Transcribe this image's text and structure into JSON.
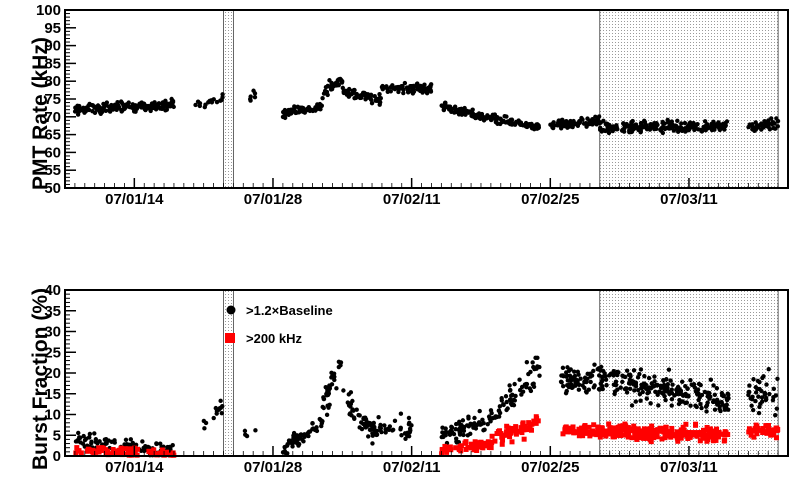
{
  "chart_data": [
    {
      "type": "scatter",
      "ylabel": "PMT Rate (kHz)",
      "xlabel": "",
      "ylim": [
        50,
        100
      ],
      "y_ticks": [
        "50",
        "55",
        "60",
        "65",
        "70",
        "75",
        "80",
        "85",
        "90",
        "95",
        "100"
      ],
      "x_ticks": [
        "07/01/14",
        "07/01/28",
        "07/02/11",
        "07/02/25",
        "07/03/11"
      ],
      "shaded_bands": [
        {
          "from": "07/01/23",
          "to": "07/01/24"
        },
        {
          "from": "07/03/02",
          "to": "07/03/20"
        }
      ],
      "series": [
        {
          "values_description_free": true,
          "segments": [
            {
              "x0": "07/01/08",
              "x1": "07/01/18",
              "y0": 72,
              "y1": 73.5,
              "noise": 1.6,
              "n": 180
            },
            {
              "x0": "07/01/20",
              "x1": "07/01/23",
              "y0": 73,
              "y1": 75,
              "noise": 1.6,
              "n": 18
            },
            {
              "x0": "07/01/25",
              "x1": "07/01/27",
              "y0": 73,
              "y1": 79,
              "noise": 2.5,
              "n": 6
            },
            {
              "x0": "07/01/29",
              "x1": "07/02/02",
              "y0": 71,
              "y1": 73,
              "noise": 1.5,
              "n": 70
            },
            {
              "x0": "07/02/02",
              "x1": "07/02/04",
              "y0": 77,
              "y1": 80,
              "noise": 2.0,
              "n": 30
            },
            {
              "x0": "07/02/04",
              "x1": "07/02/08",
              "y0": 77,
              "y1": 75,
              "noise": 1.6,
              "n": 60
            },
            {
              "x0": "07/02/08",
              "x1": "07/02/13",
              "y0": 78,
              "y1": 78,
              "noise": 1.6,
              "n": 80
            },
            {
              "x0": "07/02/14",
              "x1": "07/02/18",
              "y0": 73,
              "y1": 70,
              "noise": 1.4,
              "n": 70
            },
            {
              "x0": "07/02/18",
              "x1": "07/02/24",
              "y0": 70,
              "y1": 67,
              "noise": 1.3,
              "n": 90
            },
            {
              "x0": "07/02/25",
              "x1": "07/03/02",
              "y0": 67.5,
              "y1": 69,
              "noise": 1.4,
              "n": 90
            },
            {
              "x0": "07/03/02",
              "x1": "07/03/15",
              "y0": 67,
              "y1": 67.5,
              "noise": 1.8,
              "n": 200
            },
            {
              "x0": "07/03/17",
              "x1": "07/03/20",
              "y0": 67,
              "y1": 68,
              "noise": 2.5,
              "n": 40
            }
          ]
        }
      ]
    },
    {
      "type": "scatter",
      "ylabel": "Burst Fraction (%)",
      "xlabel": "",
      "ylim": [
        0,
        40
      ],
      "y_ticks": [
        "0",
        "5",
        "10",
        "15",
        "20",
        "25",
        "30",
        "35",
        "40"
      ],
      "x_ticks": [
        "07/01/14",
        "07/01/28",
        "07/02/11",
        "07/02/25",
        "07/03/11"
      ],
      "shaded_bands": [
        {
          "from": "07/01/23",
          "to": "07/01/24"
        },
        {
          "from": "07/03/02",
          "to": "07/03/20"
        }
      ],
      "series": [
        {
          "name": ">1.2×Baseline",
          "color": "#000000",
          "marker": "circle",
          "segments": [
            {
              "x0": "07/01/08",
              "x1": "07/01/18",
              "y0": 4,
              "y1": 1,
              "noise": 2.5,
              "n": 110
            },
            {
              "x0": "07/01/21",
              "x1": "07/01/23",
              "y0": 6,
              "y1": 13,
              "noise": 2.5,
              "n": 14
            },
            {
              "x0": "07/01/25",
              "x1": "07/01/27",
              "y0": 6,
              "y1": 5,
              "noise": 1.5,
              "n": 4
            },
            {
              "x0": "07/01/29",
              "x1": "07/02/02",
              "y0": 2,
              "y1": 8,
              "noise": 2.5,
              "n": 55
            },
            {
              "x0": "07/02/02",
              "x1": "07/02/04",
              "y0": 12,
              "y1": 22,
              "noise": 4,
              "n": 35
            },
            {
              "x0": "07/02/04",
              "x1": "07/02/07",
              "y0": 14,
              "y1": 6,
              "noise": 3,
              "n": 40
            },
            {
              "x0": "07/02/07",
              "x1": "07/02/11",
              "y0": 6,
              "y1": 7,
              "noise": 3,
              "n": 45
            },
            {
              "x0": "07/02/14",
              "x1": "07/02/20",
              "y0": 5,
              "y1": 10,
              "noise": 3,
              "n": 80
            },
            {
              "x0": "07/02/20",
              "x1": "07/02/24",
              "y0": 12,
              "y1": 22,
              "noise": 4,
              "n": 50
            },
            {
              "x0": "07/02/26",
              "x1": "07/03/03",
              "y0": 18,
              "y1": 19,
              "noise": 4,
              "n": 80
            },
            {
              "x0": "07/03/03",
              "x1": "07/03/15",
              "y0": 18,
              "y1": 13,
              "noise": 4.5,
              "n": 200
            },
            {
              "x0": "07/03/17",
              "x1": "07/03/20",
              "y0": 15,
              "y1": 15,
              "noise": 5,
              "n": 40
            }
          ]
        },
        {
          "name": ">200 kHz",
          "color": "#ff0000",
          "marker": "square",
          "segments": [
            {
              "x0": "07/01/08",
              "x1": "07/01/18",
              "y0": 1.5,
              "y1": 0.5,
              "noise": 1.2,
              "n": 90
            },
            {
              "x0": "07/02/14",
              "x1": "07/02/19",
              "y0": 1.5,
              "y1": 3,
              "noise": 1.3,
              "n": 60
            },
            {
              "x0": "07/02/19",
              "x1": "07/02/24",
              "y0": 4,
              "y1": 8,
              "noise": 2.5,
              "n": 60
            },
            {
              "x0": "07/02/26",
              "x1": "07/03/03",
              "y0": 6,
              "y1": 6,
              "noise": 1.8,
              "n": 60
            },
            {
              "x0": "07/03/03",
              "x1": "07/03/15",
              "y0": 6,
              "y1": 5,
              "noise": 2.0,
              "n": 200
            },
            {
              "x0": "07/03/17",
              "x1": "07/03/20",
              "y0": 6,
              "y1": 6,
              "noise": 2.2,
              "n": 40
            }
          ]
        }
      ]
    }
  ]
}
